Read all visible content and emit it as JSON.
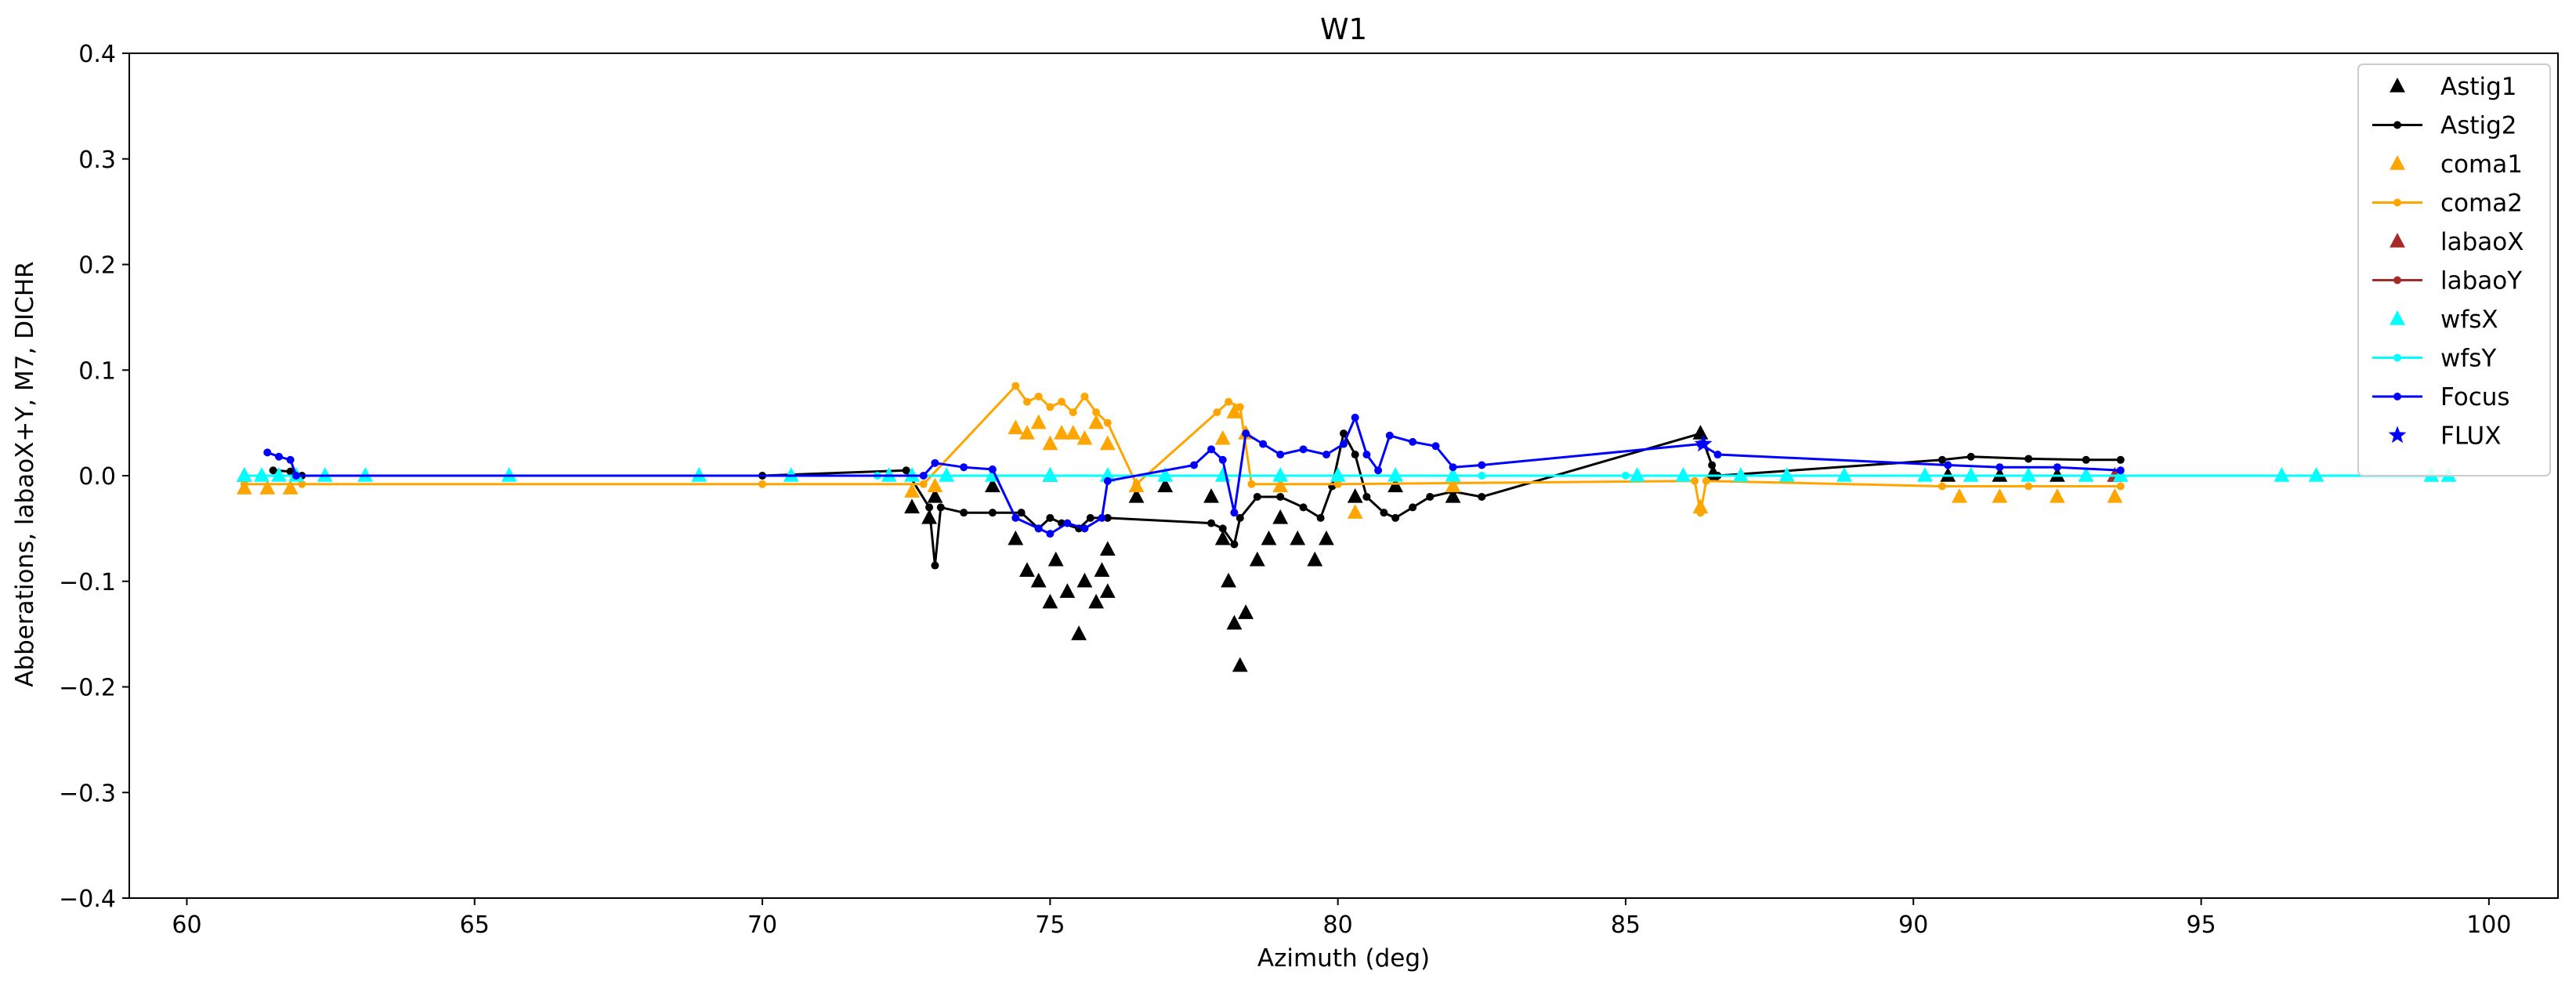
{
  "chart_data": {
    "type": "scatter",
    "title": "W1",
    "xlabel": "Azimuth (deg)",
    "ylabel": "Abberations, labaoX+Y, M7, DICHR",
    "xlim": [
      59,
      101.2
    ],
    "ylim": [
      -0.4,
      0.4
    ],
    "xticks": [
      60,
      65,
      70,
      75,
      80,
      85,
      90,
      95,
      100
    ],
    "yticks": [
      -0.4,
      -0.3,
      -0.2,
      -0.1,
      0.0,
      0.1,
      0.2,
      0.3,
      0.4
    ],
    "ytick_labels": [
      "−0.4",
      "−0.3",
      "−0.2",
      "−0.1",
      "0.0",
      "0.1",
      "0.2",
      "0.3",
      "0.4"
    ],
    "grid": false,
    "legend_position": "top-right",
    "series": [
      {
        "name": "Astig1",
        "color": "#000000",
        "marker": "triangle",
        "line": false,
        "points": [
          [
            72.6,
            -0.03
          ],
          [
            72.9,
            -0.04
          ],
          [
            73.0,
            -0.02
          ],
          [
            74.0,
            -0.01
          ],
          [
            74.4,
            -0.06
          ],
          [
            74.6,
            -0.09
          ],
          [
            74.8,
            -0.1
          ],
          [
            75.0,
            -0.12
          ],
          [
            75.1,
            -0.08
          ],
          [
            75.3,
            -0.11
          ],
          [
            75.5,
            -0.15
          ],
          [
            75.6,
            -0.1
          ],
          [
            75.8,
            -0.12
          ],
          [
            75.9,
            -0.09
          ],
          [
            76.0,
            -0.11
          ],
          [
            76.0,
            -0.07
          ],
          [
            76.5,
            -0.02
          ],
          [
            77.0,
            -0.01
          ],
          [
            77.8,
            -0.02
          ],
          [
            78.0,
            -0.06
          ],
          [
            78.1,
            -0.1
          ],
          [
            78.2,
            -0.14
          ],
          [
            78.3,
            -0.18
          ],
          [
            78.4,
            -0.13
          ],
          [
            78.6,
            -0.08
          ],
          [
            78.8,
            -0.06
          ],
          [
            79.0,
            -0.04
          ],
          [
            79.3,
            -0.06
          ],
          [
            79.6,
            -0.08
          ],
          [
            79.8,
            -0.06
          ],
          [
            80.3,
            -0.02
          ],
          [
            81.0,
            -0.01
          ],
          [
            82.0,
            -0.02
          ],
          [
            86.3,
            0.04
          ],
          [
            86.5,
            0.0
          ],
          [
            90.6,
            0.0
          ],
          [
            91.5,
            0.0
          ],
          [
            92.5,
            0.0
          ],
          [
            93.5,
            0.0
          ]
        ]
      },
      {
        "name": "Astig2",
        "color": "#000000",
        "marker": "dot",
        "line": true,
        "points": [
          [
            61.5,
            0.005
          ],
          [
            61.8,
            0.004
          ],
          [
            62.0,
            0.0
          ],
          [
            70.0,
            0.0
          ],
          [
            72.5,
            0.005
          ],
          [
            72.9,
            -0.03
          ],
          [
            73.0,
            -0.085
          ],
          [
            73.1,
            -0.03
          ],
          [
            73.5,
            -0.035
          ],
          [
            74.0,
            -0.035
          ],
          [
            74.5,
            -0.035
          ],
          [
            74.8,
            -0.05
          ],
          [
            75.0,
            -0.04
          ],
          [
            75.2,
            -0.045
          ],
          [
            75.5,
            -0.05
          ],
          [
            75.7,
            -0.04
          ],
          [
            76.0,
            -0.04
          ],
          [
            77.8,
            -0.045
          ],
          [
            78.0,
            -0.05
          ],
          [
            78.2,
            -0.065
          ],
          [
            78.3,
            -0.04
          ],
          [
            78.6,
            -0.02
          ],
          [
            79.0,
            -0.02
          ],
          [
            79.4,
            -0.03
          ],
          [
            79.7,
            -0.04
          ],
          [
            79.9,
            -0.01
          ],
          [
            80.1,
            0.04
          ],
          [
            80.3,
            0.02
          ],
          [
            80.5,
            -0.02
          ],
          [
            80.8,
            -0.035
          ],
          [
            81.0,
            -0.04
          ],
          [
            81.3,
            -0.03
          ],
          [
            81.6,
            -0.02
          ],
          [
            82.0,
            -0.015
          ],
          [
            82.5,
            -0.02
          ],
          [
            86.3,
            0.04
          ],
          [
            86.5,
            0.01
          ],
          [
            86.6,
            0.0
          ],
          [
            90.5,
            0.015
          ],
          [
            91.0,
            0.018
          ],
          [
            92.0,
            0.016
          ],
          [
            93.0,
            0.015
          ],
          [
            93.6,
            0.015
          ]
        ]
      },
      {
        "name": "coma1",
        "color": "#ffa500",
        "marker": "triangle",
        "line": false,
        "points": [
          [
            61.0,
            -0.012
          ],
          [
            61.4,
            -0.012
          ],
          [
            61.8,
            -0.012
          ],
          [
            72.6,
            -0.015
          ],
          [
            73.0,
            -0.01
          ],
          [
            74.4,
            0.045
          ],
          [
            74.6,
            0.04
          ],
          [
            74.8,
            0.05
          ],
          [
            75.0,
            0.03
          ],
          [
            75.2,
            0.04
          ],
          [
            75.4,
            0.04
          ],
          [
            75.6,
            0.035
          ],
          [
            75.8,
            0.05
          ],
          [
            76.0,
            0.03
          ],
          [
            76.5,
            -0.01
          ],
          [
            78.0,
            0.035
          ],
          [
            78.2,
            0.06
          ],
          [
            78.4,
            0.04
          ],
          [
            79.0,
            -0.01
          ],
          [
            80.3,
            -0.035
          ],
          [
            82.0,
            -0.01
          ],
          [
            86.3,
            -0.03
          ],
          [
            90.8,
            -0.02
          ],
          [
            91.5,
            -0.02
          ],
          [
            92.5,
            -0.02
          ],
          [
            93.5,
            -0.02
          ]
        ]
      },
      {
        "name": "coma2",
        "color": "#ffa500",
        "marker": "dot",
        "line": true,
        "points": [
          [
            61.0,
            -0.008
          ],
          [
            62.0,
            -0.008
          ],
          [
            70.0,
            -0.008
          ],
          [
            72.8,
            -0.008
          ],
          [
            74.4,
            0.085
          ],
          [
            74.6,
            0.07
          ],
          [
            74.8,
            0.075
          ],
          [
            75.0,
            0.065
          ],
          [
            75.2,
            0.07
          ],
          [
            75.4,
            0.06
          ],
          [
            75.6,
            0.075
          ],
          [
            75.8,
            0.06
          ],
          [
            76.0,
            0.05
          ],
          [
            76.5,
            -0.008
          ],
          [
            77.9,
            0.06
          ],
          [
            78.1,
            0.07
          ],
          [
            78.3,
            0.065
          ],
          [
            78.5,
            -0.008
          ],
          [
            80.0,
            -0.008
          ],
          [
            86.2,
            -0.005
          ],
          [
            86.3,
            -0.035
          ],
          [
            86.4,
            -0.005
          ],
          [
            90.5,
            -0.01
          ],
          [
            92.0,
            -0.01
          ],
          [
            93.6,
            -0.01
          ]
        ]
      },
      {
        "name": "labaoX",
        "color": "#a52a2a",
        "marker": "triangle",
        "line": false,
        "points": [
          [
            61.0,
            0.0
          ],
          [
            75.0,
            0.0
          ],
          [
            93.5,
            0.0
          ]
        ]
      },
      {
        "name": "labaoY",
        "color": "#a52a2a",
        "marker": "dot",
        "line": true,
        "points": [
          [
            61.0,
            0.0
          ],
          [
            93.5,
            0.0
          ]
        ]
      },
      {
        "name": "wfsX",
        "color": "#00ffff",
        "marker": "triangle",
        "line": false,
        "points": [
          [
            61.0,
            0.0
          ],
          [
            61.3,
            0.0
          ],
          [
            61.6,
            0.0
          ],
          [
            61.9,
            0.0
          ],
          [
            62.4,
            0.0
          ],
          [
            63.1,
            0.0
          ],
          [
            65.6,
            0.0
          ],
          [
            68.9,
            0.0
          ],
          [
            70.5,
            0.0
          ],
          [
            72.2,
            0.0
          ],
          [
            72.6,
            0.0
          ],
          [
            73.2,
            0.0
          ],
          [
            74.0,
            0.0
          ],
          [
            75.0,
            0.0
          ],
          [
            76.0,
            0.0
          ],
          [
            77.0,
            0.0
          ],
          [
            78.0,
            0.0
          ],
          [
            79.0,
            0.0
          ],
          [
            80.0,
            0.0
          ],
          [
            81.0,
            0.0
          ],
          [
            82.0,
            0.0
          ],
          [
            85.2,
            0.0
          ],
          [
            86.0,
            0.0
          ],
          [
            87.0,
            0.0
          ],
          [
            87.8,
            0.0
          ],
          [
            88.8,
            0.0
          ],
          [
            90.2,
            0.0
          ],
          [
            91.0,
            0.0
          ],
          [
            92.0,
            0.0
          ],
          [
            93.0,
            0.0
          ],
          [
            93.6,
            0.0
          ],
          [
            96.4,
            0.0
          ],
          [
            97.0,
            0.0
          ],
          [
            99.0,
            0.0
          ],
          [
            99.3,
            0.0
          ]
        ]
      },
      {
        "name": "wfsY",
        "color": "#00ffff",
        "marker": "dot",
        "line": true,
        "points": [
          [
            61.0,
            0.0
          ],
          [
            72.0,
            0.0
          ],
          [
            82.5,
            0.0
          ],
          [
            85.0,
            0.0
          ],
          [
            93.6,
            0.0
          ],
          [
            99.3,
            0.0
          ]
        ]
      },
      {
        "name": "Focus",
        "color": "#0000ff",
        "marker": "dot",
        "line": true,
        "points": [
          [
            61.4,
            0.022
          ],
          [
            61.6,
            0.018
          ],
          [
            61.8,
            0.015
          ],
          [
            61.9,
            0.0
          ],
          [
            72.8,
            0.0
          ],
          [
            73.0,
            0.012
          ],
          [
            73.5,
            0.008
          ],
          [
            74.0,
            0.006
          ],
          [
            74.4,
            -0.04
          ],
          [
            74.8,
            -0.05
          ],
          [
            75.0,
            -0.055
          ],
          [
            75.3,
            -0.045
          ],
          [
            75.6,
            -0.05
          ],
          [
            75.9,
            -0.04
          ],
          [
            76.0,
            -0.005
          ],
          [
            77.5,
            0.01
          ],
          [
            77.8,
            0.025
          ],
          [
            78.0,
            0.015
          ],
          [
            78.2,
            -0.035
          ],
          [
            78.4,
            0.04
          ],
          [
            78.7,
            0.03
          ],
          [
            79.0,
            0.02
          ],
          [
            79.4,
            0.025
          ],
          [
            79.8,
            0.02
          ],
          [
            80.1,
            0.03
          ],
          [
            80.3,
            0.055
          ],
          [
            80.5,
            0.02
          ],
          [
            80.7,
            0.005
          ],
          [
            80.9,
            0.038
          ],
          [
            81.3,
            0.032
          ],
          [
            81.7,
            0.028
          ],
          [
            82.0,
            0.008
          ],
          [
            82.5,
            0.01
          ],
          [
            86.3,
            0.03
          ],
          [
            86.6,
            0.02
          ],
          [
            90.6,
            0.01
          ],
          [
            91.5,
            0.008
          ],
          [
            92.5,
            0.008
          ],
          [
            93.6,
            0.005
          ]
        ]
      },
      {
        "name": "FLUX",
        "color": "#0000ff",
        "marker": "star",
        "line": false,
        "points": [
          [
            86.35,
            0.03
          ]
        ]
      }
    ]
  }
}
